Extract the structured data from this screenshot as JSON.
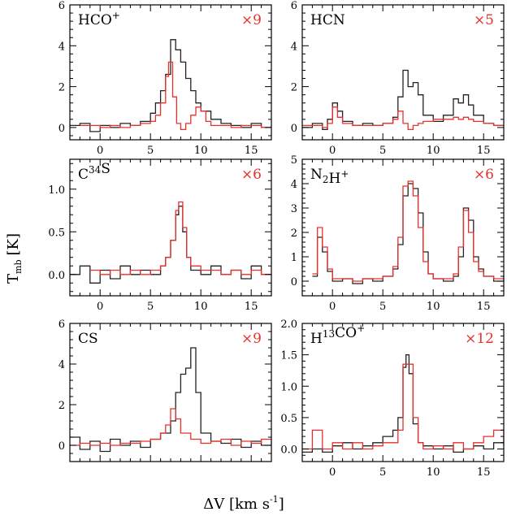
{
  "figure": {
    "ylabel": "T",
    "ylabel_sub": "mb",
    "ylabel_unit": "[K]",
    "xlabel": "ΔV [km s",
    "xlabel_sup": "-1",
    "xlabel_end": "]"
  },
  "colors": {
    "black_spectrum": "#222222",
    "red_spectrum": "#e8302c"
  },
  "chart_data": [
    {
      "type": "line",
      "label_parts": [
        {
          "t": "HCO"
        },
        {
          "t": "+",
          "sup": true
        }
      ],
      "factor": "×9",
      "xlim": [
        -3,
        17
      ],
      "ylim": [
        -0.6,
        6
      ],
      "xticks": [
        0,
        5,
        10,
        15
      ],
      "yticks": [
        0,
        2,
        4,
        6
      ],
      "show_xticklabels": true,
      "series": [
        {
          "color": "black",
          "x": [
            -3,
            -2,
            -1,
            0,
            1,
            2,
            3,
            4,
            5,
            5.5,
            6,
            6.5,
            7,
            7.5,
            8,
            8.5,
            9,
            9.5,
            10,
            11,
            12,
            13,
            14,
            15,
            16,
            17
          ],
          "y": [
            0.1,
            0.2,
            -0.2,
            0.1,
            0.0,
            0.2,
            0.1,
            0.3,
            0.7,
            1.2,
            1.8,
            2.6,
            4.3,
            3.8,
            3.2,
            2.4,
            1.8,
            1.2,
            0.8,
            0.4,
            0.2,
            0.1,
            0.0,
            0.2,
            0.0,
            0.1
          ]
        },
        {
          "color": "red",
          "x": [
            -2,
            -1,
            0,
            1,
            2,
            3,
            4,
            5,
            5.5,
            6,
            6.5,
            6.8,
            7.2,
            7.6,
            8,
            8.5,
            9,
            9.5,
            10,
            10.5,
            11,
            12,
            13,
            14,
            15,
            16,
            17
          ],
          "y": [
            0.1,
            0.1,
            0.0,
            0.1,
            0.0,
            0.1,
            0.2,
            0.3,
            0.6,
            1.2,
            2.5,
            3.2,
            1.5,
            0.2,
            -0.1,
            0.2,
            0.6,
            1.0,
            0.8,
            0.3,
            0.1,
            0.1,
            0.0,
            0.1,
            0.1,
            0.0,
            0.0
          ]
        }
      ]
    },
    {
      "type": "line",
      "label_parts": [
        {
          "t": "HCN"
        }
      ],
      "factor": "×5",
      "xlim": [
        -3,
        17
      ],
      "ylim": [
        -0.6,
        6
      ],
      "xticks": [
        0,
        5,
        10,
        15
      ],
      "yticks": [
        0,
        2,
        4,
        6
      ],
      "show_xticklabels": true,
      "series": [
        {
          "color": "black",
          "x": [
            -3,
            -2,
            -1,
            -0.5,
            0,
            0.5,
            1,
            2,
            3,
            4,
            5,
            6,
            6.5,
            7,
            7.5,
            8,
            8.5,
            9,
            10,
            11,
            12,
            12.5,
            13,
            13.5,
            14,
            15,
            16,
            17
          ],
          "y": [
            0.0,
            0.2,
            -0.1,
            0.4,
            1.2,
            0.8,
            0.3,
            0.1,
            0.2,
            0.1,
            0.2,
            0.5,
            1.5,
            2.8,
            2.0,
            2.2,
            1.6,
            0.6,
            0.3,
            0.6,
            1.4,
            1.2,
            1.6,
            1.1,
            0.6,
            0.2,
            0.1,
            0.0
          ]
        },
        {
          "color": "red",
          "x": [
            -3,
            -2,
            -1,
            -0.5,
            0,
            0.5,
            1,
            2,
            3,
            4,
            5,
            6,
            6.5,
            7,
            7.5,
            8,
            8.5,
            9,
            10,
            11,
            12,
            12.5,
            13,
            13.5,
            14,
            15,
            16,
            17
          ],
          "y": [
            0.1,
            0.1,
            0.0,
            0.2,
            1.0,
            0.5,
            0.2,
            0.1,
            0.1,
            0.1,
            0.2,
            0.4,
            0.8,
            0.2,
            -0.1,
            0.1,
            0.2,
            0.3,
            0.4,
            0.4,
            0.5,
            0.4,
            0.5,
            0.4,
            0.3,
            0.2,
            0.1,
            0.1
          ]
        }
      ]
    },
    {
      "type": "line",
      "label_parts": [
        {
          "t": "C"
        },
        {
          "t": "34",
          "sup": true
        },
        {
          "t": "S"
        }
      ],
      "factor": "×6",
      "xlim": [
        -3,
        17
      ],
      "ylim": [
        -0.25,
        1.35
      ],
      "xticks": [
        0,
        5,
        10,
        15
      ],
      "yticks": [
        0.0,
        0.5,
        1.0
      ],
      "show_xticklabels": true,
      "series": [
        {
          "color": "black",
          "x": [
            -3,
            -2,
            -1,
            0,
            1,
            2,
            3,
            4,
            5,
            6,
            6.5,
            7,
            7.5,
            7.8,
            8.2,
            8.6,
            9,
            10,
            11,
            12,
            13,
            14,
            15,
            16,
            17
          ],
          "y": [
            0.0,
            0.1,
            -0.1,
            0.05,
            -0.05,
            0.1,
            0.0,
            0.05,
            0.0,
            0.1,
            0.2,
            0.4,
            0.7,
            0.8,
            0.5,
            0.2,
            0.05,
            0.0,
            0.1,
            0.0,
            0.05,
            -0.05,
            0.1,
            0.0,
            0.0
          ]
        },
        {
          "color": "red",
          "x": [
            -1,
            0,
            1,
            2,
            3,
            4,
            5,
            6,
            6.5,
            7,
            7.5,
            7.8,
            8.2,
            8.6,
            9,
            10,
            11,
            12,
            13,
            14,
            15,
            16,
            17
          ],
          "y": [
            0.05,
            0.0,
            0.05,
            0.0,
            0.05,
            0.0,
            0.05,
            0.1,
            0.2,
            0.4,
            0.75,
            0.85,
            0.55,
            0.2,
            0.1,
            0.05,
            0.05,
            0.0,
            0.05,
            0.0,
            0.05,
            0.0,
            0.0
          ]
        }
      ]
    },
    {
      "type": "line",
      "label_parts": [
        {
          "t": "N"
        },
        {
          "t": "2",
          "sub": true
        },
        {
          "t": "H"
        },
        {
          "t": "+",
          "sup": true
        }
      ],
      "factor": "×6",
      "xlim": [
        -3,
        17
      ],
      "ylim": [
        -0.6,
        5
      ],
      "xticks": [
        0,
        5,
        10,
        15
      ],
      "yticks": [
        0,
        1,
        2,
        3,
        4,
        5
      ],
      "show_xticklabels": true,
      "series": [
        {
          "color": "black",
          "x": [
            -2,
            -1.5,
            -1,
            -0.5,
            0,
            1,
            2,
            3,
            4,
            5,
            6,
            6.5,
            7,
            7.5,
            8,
            8.5,
            9,
            9.5,
            10,
            11,
            12,
            12.5,
            13,
            13.5,
            14,
            14.5,
            15,
            16,
            17
          ],
          "y": [
            0.2,
            1.8,
            1.2,
            0.4,
            0.0,
            0.1,
            -0.1,
            0.1,
            0.0,
            0.2,
            0.5,
            1.5,
            3.5,
            4.0,
            3.8,
            2.8,
            1.2,
            0.3,
            0.1,
            0.0,
            0.2,
            1.0,
            3.0,
            2.5,
            1.0,
            0.5,
            0.2,
            0.0,
            0.2
          ]
        },
        {
          "color": "red",
          "x": [
            -2,
            -1.5,
            -1,
            -0.5,
            0,
            1,
            2,
            3,
            4,
            5,
            6,
            6.5,
            7,
            7.5,
            8,
            8.5,
            9,
            9.5,
            10,
            11,
            12,
            12.5,
            13,
            13.5,
            14,
            14.5,
            15,
            16,
            17
          ],
          "y": [
            0.3,
            2.2,
            1.4,
            0.5,
            0.1,
            0.1,
            0.0,
            0.1,
            0.1,
            0.2,
            0.6,
            1.8,
            3.9,
            4.1,
            3.5,
            2.2,
            0.8,
            0.3,
            0.1,
            0.1,
            0.3,
            1.4,
            2.9,
            2.0,
            0.8,
            0.4,
            0.2,
            0.1,
            0.1
          ]
        }
      ]
    },
    {
      "type": "line",
      "label_parts": [
        {
          "t": "CS"
        }
      ],
      "factor": "×9",
      "xlim": [
        -3,
        17
      ],
      "ylim": [
        -0.8,
        6
      ],
      "xticks": [
        0,
        5,
        10,
        15
      ],
      "yticks": [
        0,
        2,
        4,
        6
      ],
      "show_xticklabels": false,
      "series": [
        {
          "color": "black",
          "x": [
            -3,
            -2,
            -1,
            0,
            1,
            2,
            3,
            4,
            5,
            6,
            7,
            7.5,
            8,
            8.5,
            9,
            9.5,
            10,
            11,
            12,
            13,
            14,
            15,
            16,
            17
          ],
          "y": [
            0.4,
            -0.2,
            0.2,
            -0.3,
            0.3,
            0.0,
            0.2,
            -0.1,
            0.3,
            0.6,
            1.2,
            2.6,
            3.5,
            3.8,
            4.8,
            2.6,
            0.6,
            0.2,
            0.1,
            0.3,
            -0.1,
            0.2,
            0.0,
            0.2
          ]
        },
        {
          "color": "red",
          "x": [
            -3,
            -2,
            -1,
            0,
            1,
            2,
            3,
            4,
            5,
            6,
            6.5,
            7,
            7.5,
            8,
            9,
            10,
            11,
            12,
            13,
            14,
            15,
            16,
            17
          ],
          "y": [
            0.0,
            0.1,
            0.0,
            0.1,
            0.0,
            0.1,
            0.1,
            0.2,
            0.3,
            0.6,
            1.0,
            1.8,
            1.3,
            0.6,
            0.3,
            0.1,
            0.2,
            0.3,
            0.0,
            0.2,
            0.1,
            0.3,
            0.2
          ]
        }
      ]
    },
    {
      "type": "line",
      "label_parts": [
        {
          "t": "H"
        },
        {
          "t": "13",
          "sup": true
        },
        {
          "t": "CO"
        },
        {
          "t": "+",
          "sup": true
        }
      ],
      "factor": "×12",
      "xlim": [
        -3,
        17
      ],
      "ylim": [
        -0.2,
        2.0
      ],
      "xticks": [
        0,
        5,
        10,
        15
      ],
      "yticks": [
        0.0,
        0.5,
        1.0,
        1.5,
        2.0
      ],
      "show_xticklabels": true,
      "series": [
        {
          "color": "black",
          "x": [
            -3,
            -2,
            -1,
            0,
            1,
            2,
            3,
            4,
            5,
            6,
            6.5,
            7,
            7.3,
            7.6,
            8,
            8.5,
            9,
            10,
            11,
            12,
            13,
            14,
            15,
            16,
            17
          ],
          "y": [
            -0.05,
            0.0,
            -0.05,
            0.05,
            0.1,
            0.0,
            0.05,
            0.1,
            0.2,
            0.3,
            0.5,
            1.3,
            1.5,
            1.2,
            0.4,
            0.1,
            0.05,
            0.0,
            0.05,
            -0.05,
            0.0,
            0.05,
            0.0,
            0.1,
            0.05
          ]
        },
        {
          "color": "red",
          "x": [
            -3,
            -2,
            -1,
            0,
            1,
            2,
            3,
            4,
            5,
            6,
            6.5,
            7,
            7.5,
            8,
            8.5,
            9,
            10,
            11,
            12,
            13,
            14,
            15,
            16,
            17
          ],
          "y": [
            0.0,
            0.3,
            0.0,
            0.1,
            0.0,
            0.1,
            0.0,
            0.05,
            0.1,
            0.1,
            0.3,
            1.35,
            1.35,
            0.5,
            0.1,
            0.0,
            0.05,
            0.0,
            0.1,
            0.0,
            0.1,
            0.2,
            0.3,
            0.1
          ]
        }
      ]
    }
  ]
}
